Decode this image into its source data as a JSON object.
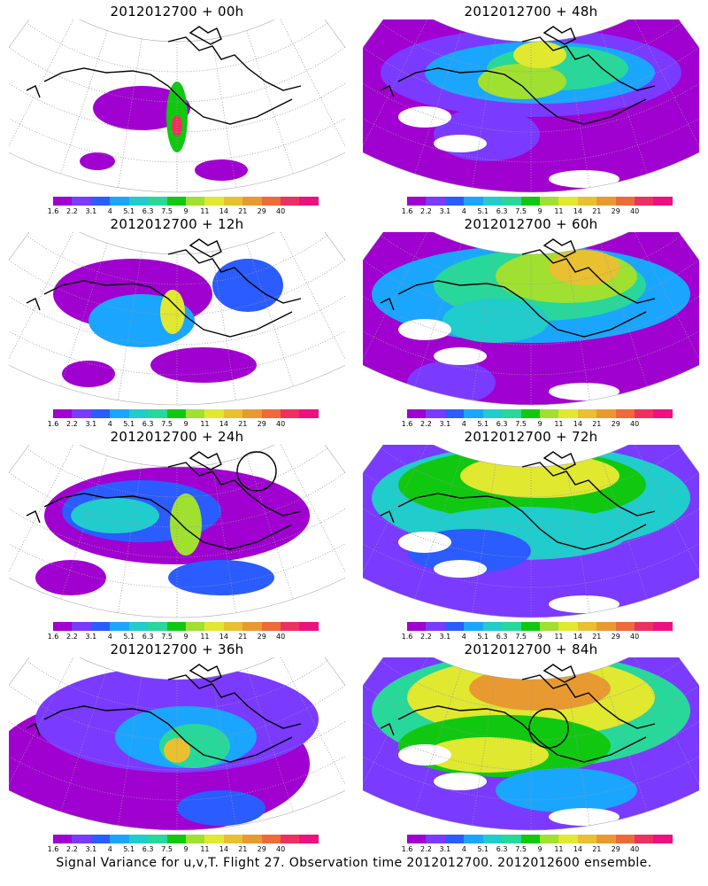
{
  "panels": [
    {
      "title": "2012012700 + 00h",
      "variant": 0,
      "circle": false
    },
    {
      "title": "2012012700 + 48h",
      "variant": 4,
      "circle": false
    },
    {
      "title": "2012012700 + 12h",
      "variant": 1,
      "circle": false
    },
    {
      "title": "2012012700 + 60h",
      "variant": 5,
      "circle": false
    },
    {
      "title": "2012012700 + 24h",
      "variant": 2,
      "circle": true
    },
    {
      "title": "2012012700 + 72h",
      "variant": 6,
      "circle": false
    },
    {
      "title": "2012012700 + 36h",
      "variant": 3,
      "circle": false
    },
    {
      "title": "2012012700 + 84h",
      "variant": 7,
      "circle": true
    }
  ],
  "colorbar": {
    "colors": [
      "#a000d0",
      "#7a3aff",
      "#2a5cff",
      "#1aa6ff",
      "#20cccc",
      "#27d89a",
      "#10c810",
      "#a0e030",
      "#e0e830",
      "#e8c030",
      "#e89a30",
      "#ee6a38",
      "#ee3060",
      "#ee1080"
    ],
    "labels": [
      "1.6",
      "2.2",
      "3.1",
      "4",
      "5.1",
      "6.3",
      "7.5",
      "9",
      "11",
      "14",
      "21",
      "29",
      "40"
    ]
  },
  "footer": "Signal Variance for u,v,T. Flight 27. Observation time 2012012700. 2012012600 ensemble."
}
